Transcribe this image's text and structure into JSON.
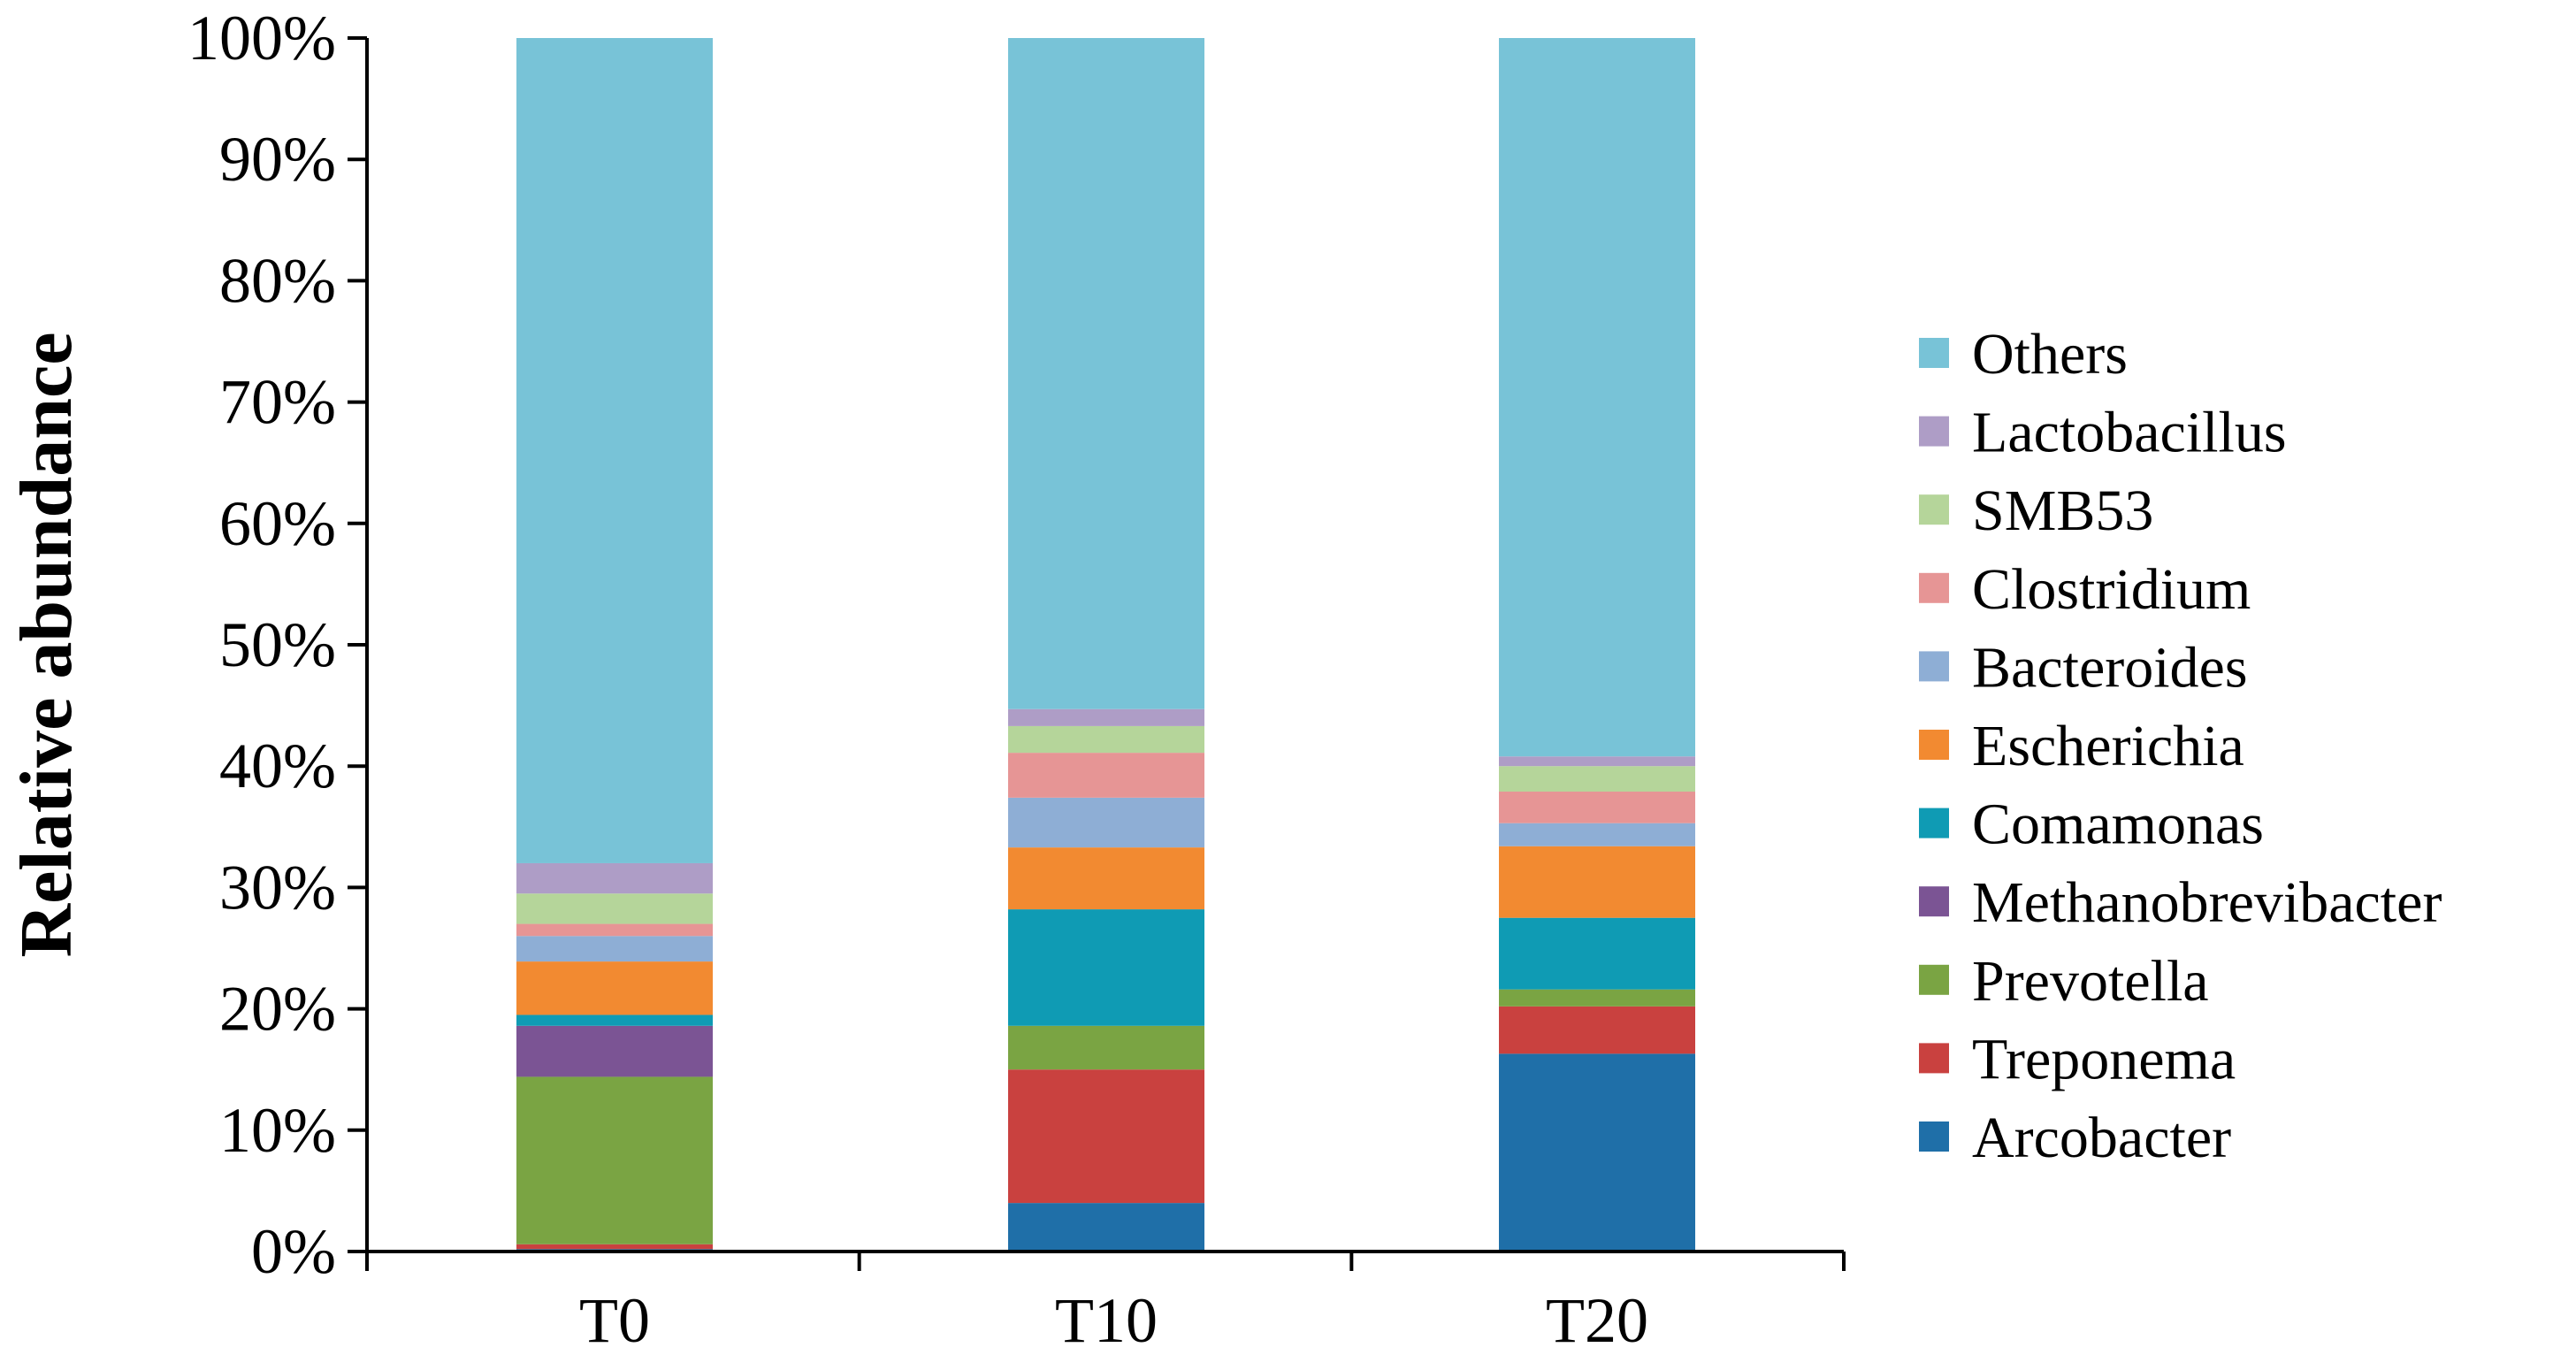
{
  "chart_data": {
    "type": "bar",
    "stacked": true,
    "title": "",
    "xlabel": "",
    "ylabel": "Relative abundance",
    "ylim": [
      0,
      100
    ],
    "y_ticks": [
      "0%",
      "10%",
      "20%",
      "30%",
      "40%",
      "50%",
      "60%",
      "70%",
      "80%",
      "90%",
      "100%"
    ],
    "categories": [
      "T0",
      "T10",
      "T20"
    ],
    "legend_position": "right",
    "grid": false,
    "series": [
      {
        "name": "Arcobacter",
        "color": "#1f6fa8",
        "values": [
          0.2,
          4.0,
          16.3
        ]
      },
      {
        "name": "Treponema",
        "color": "#c9413f",
        "values": [
          0.4,
          11.0,
          3.9
        ]
      },
      {
        "name": "Prevotella",
        "color": "#7aa443",
        "values": [
          13.8,
          3.6,
          1.4
        ]
      },
      {
        "name": "Methanobrevibacter",
        "color": "#7b5494",
        "values": [
          4.2,
          0.0,
          0.0
        ]
      },
      {
        "name": "Comamonas",
        "color": "#0f9bb4",
        "values": [
          0.9,
          9.6,
          5.9
        ]
      },
      {
        "name": "Escherichia",
        "color": "#f28a31",
        "values": [
          4.4,
          5.1,
          5.9
        ]
      },
      {
        "name": "Bacteroides",
        "color": "#8eaed5",
        "values": [
          2.1,
          4.1,
          1.9
        ]
      },
      {
        "name": "Clostridium",
        "color": "#e69595",
        "values": [
          1.0,
          3.7,
          2.6
        ]
      },
      {
        "name": "SMB53",
        "color": "#b5d59a",
        "values": [
          2.5,
          2.2,
          2.1
        ]
      },
      {
        "name": "Lactobacillus",
        "color": "#ae9dc6",
        "values": [
          2.5,
          1.4,
          0.8
        ]
      },
      {
        "name": "Others",
        "color": "#78c3d7",
        "values": [
          68.0,
          55.3,
          59.2
        ]
      }
    ]
  }
}
